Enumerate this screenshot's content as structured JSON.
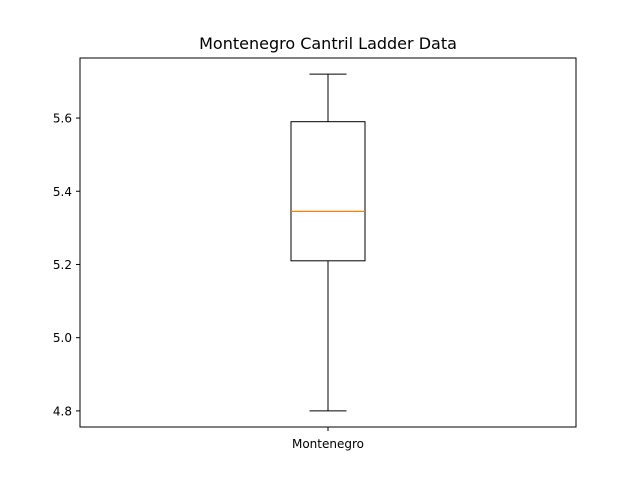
{
  "chart_data": {
    "type": "box",
    "title": "Montenegro Cantril Ladder Data",
    "xlabel": "",
    "ylabel": "",
    "categories": [
      "Montenegro"
    ],
    "boxes": [
      {
        "category": "Montenegro",
        "whisker_low": 4.8,
        "q1": 5.21,
        "median": 5.345,
        "q3": 5.59,
        "whisker_high": 5.72
      }
    ],
    "ylim": [
      4.756,
      5.764
    ],
    "yticks": [
      4.8,
      5.0,
      5.2,
      5.4,
      5.6
    ],
    "ytick_labels": [
      "4.8",
      "5.0",
      "5.2",
      "5.4",
      "5.6"
    ],
    "grid": false,
    "colors": {
      "box": "#000000",
      "median": "#ff7f0e"
    }
  }
}
